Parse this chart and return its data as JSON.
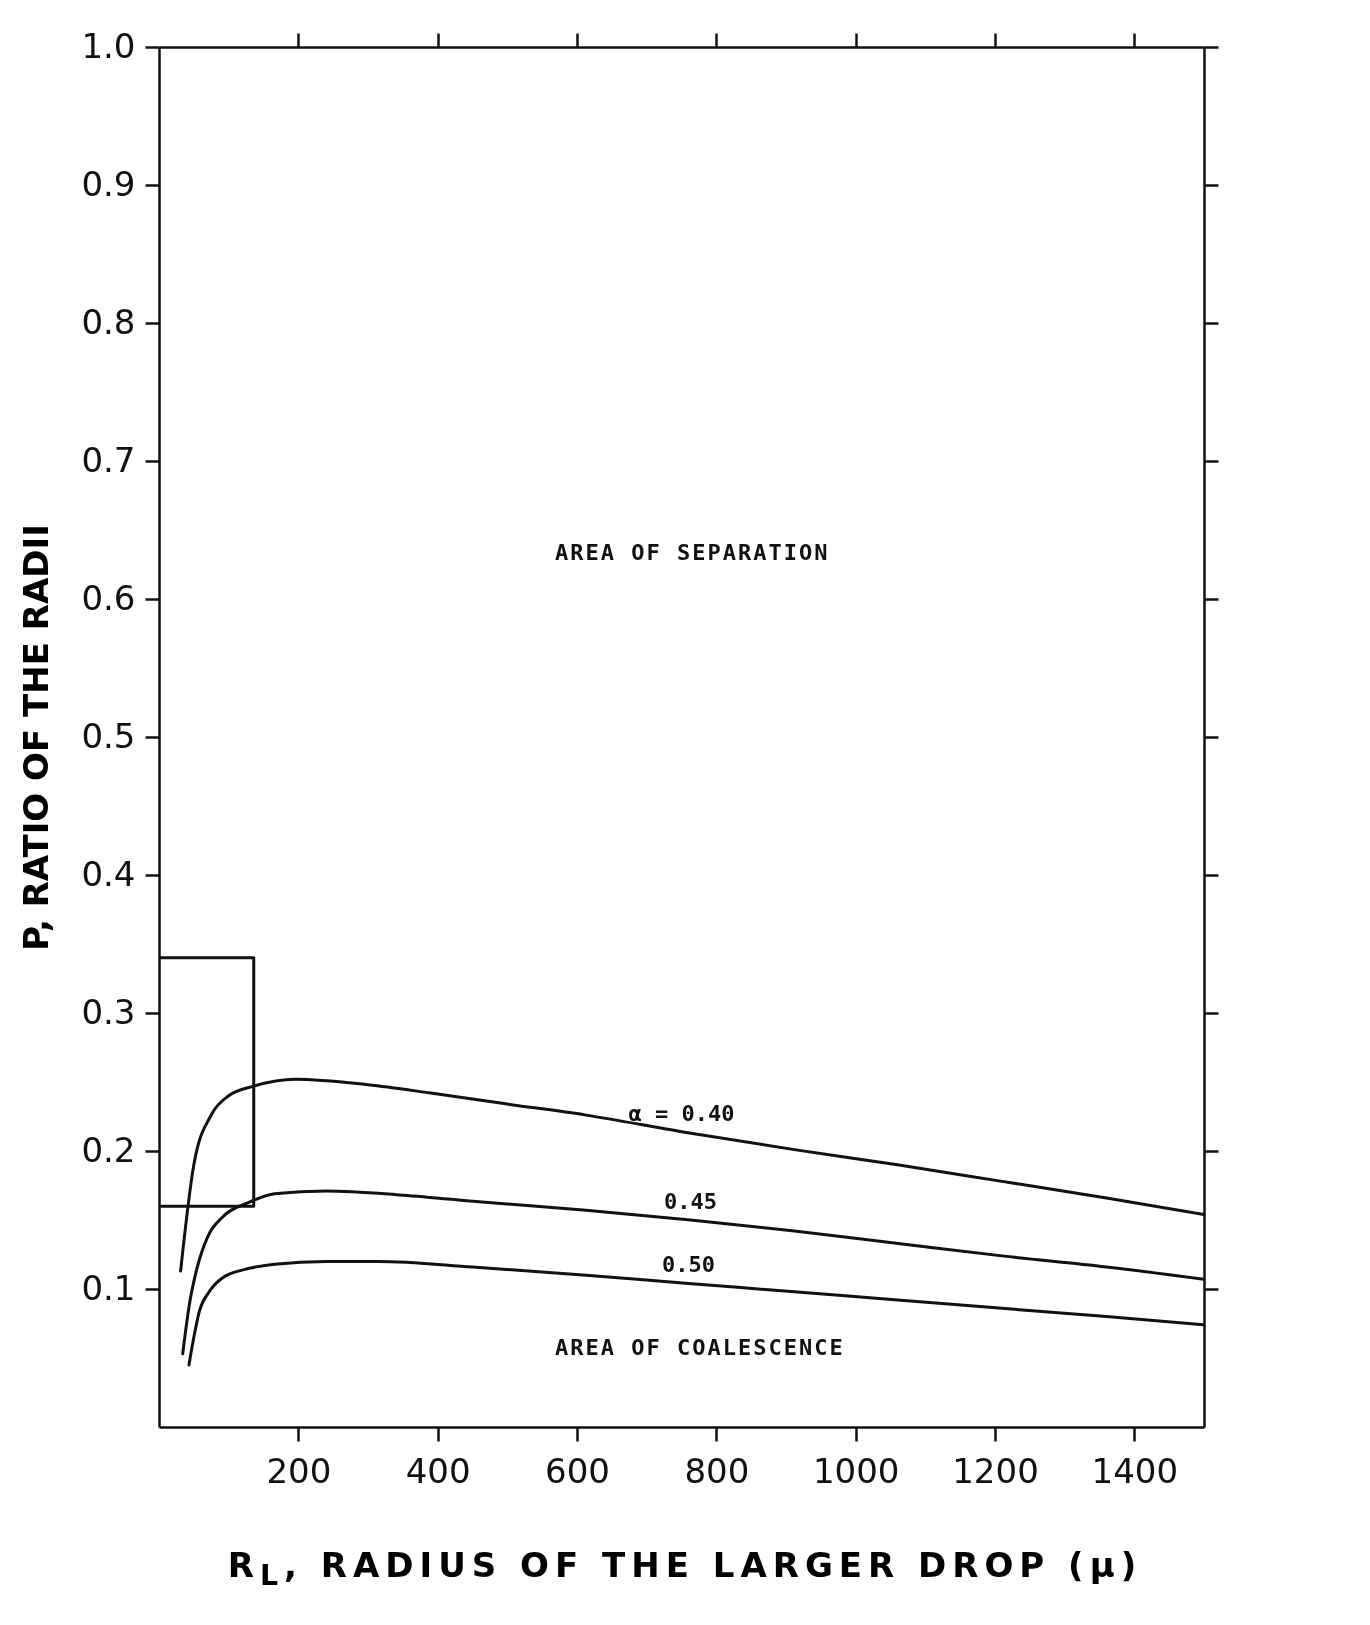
{
  "chart_data": {
    "type": "line",
    "xlabel": "R$_{L}$, RADIUS OF THE LARGER DROP (μ)",
    "ylabel": "P, RATIO OF THE RADII",
    "xlim": [
      0,
      1500
    ],
    "ylim": [
      0,
      1.0
    ],
    "xticks": [
      200,
      400,
      600,
      800,
      1000,
      1200,
      1400
    ],
    "yticks": [
      0.1,
      0.2,
      0.3,
      0.4,
      0.5,
      0.6,
      0.7,
      0.8,
      0.9,
      {
        "value": 1.0,
        "label": "1.0"
      }
    ],
    "grid": false,
    "legend": false,
    "marker": "none",
    "line_style": "solid",
    "series": [
      {
        "name": "α = 0.40",
        "color": "#111111",
        "x": [
          31,
          50,
          76,
          100,
          136,
          196,
          300,
          390,
          500,
          613,
          750,
          912,
          1060,
          1210,
          1360,
          1500
        ],
        "values": [
          0.113,
          0.19,
          0.227,
          0.24,
          0.247,
          0.252,
          0.248,
          0.242,
          0.234,
          0.226,
          0.214,
          0.201,
          0.19,
          0.178,
          0.166,
          0.154
        ]
      },
      {
        "name": "0.45",
        "color": "#111111",
        "x": [
          34,
          44,
          54,
          70,
          91,
          130,
          166,
          240,
          350,
          464,
          613,
          763,
          912,
          1061,
          1210,
          1360,
          1500
        ],
        "values": [
          0.053,
          0.09,
          0.114,
          0.138,
          0.152,
          0.163,
          0.169,
          0.171,
          0.168,
          0.163,
          0.157,
          0.15,
          0.142,
          0.133,
          0.124,
          0.116,
          0.107
        ]
      },
      {
        "name": "0.50",
        "color": "#111111",
        "x": [
          43,
          50,
          58,
          72,
          91,
          130,
          166,
          240,
          315,
          450,
          613,
          760,
          912,
          1060,
          1210,
          1360,
          1500
        ],
        "values": [
          0.045,
          0.065,
          0.084,
          0.098,
          0.108,
          0.115,
          0.118,
          0.12,
          0.12,
          0.116,
          0.11,
          0.104,
          0.098,
          0.092,
          0.086,
          0.08,
          0.074
        ]
      },
      {
        "color": "#111111",
        "x": [
          0,
          136,
          136,
          0
        ],
        "values": [
          0.34,
          0.34,
          0.16,
          0.16
        ]
      }
    ],
    "annotations": [
      "AREA OF SEPARATION",
      "AREA OF COALESCENCE"
    ]
  }
}
